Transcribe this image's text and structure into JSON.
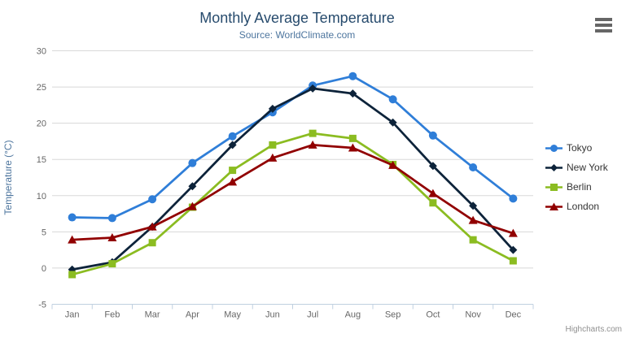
{
  "header": {
    "title": "Monthly Average Temperature",
    "subtitle": "Source: WorldClimate.com"
  },
  "menu": {
    "icon": "hamburger-menu-icon"
  },
  "credits": {
    "label": "Highcharts.com"
  },
  "colors": {
    "title_text": "#274b6d",
    "subtitle_text": "#4d759e",
    "axis_label_text": "#666666",
    "axis_title_text": "#4d759e",
    "legend_text": "#333333",
    "gridline": "#d8d8d8",
    "axis_line": "#c0d0e0",
    "credits_text": "#909090",
    "menu_icon": "#666666",
    "background": "#ffffff"
  },
  "chart_data": {
    "type": "line",
    "title": "Monthly Average Temperature",
    "subtitle": "Source: WorldClimate.com",
    "categories": [
      "Jan",
      "Feb",
      "Mar",
      "Apr",
      "May",
      "Jun",
      "Jul",
      "Aug",
      "Sep",
      "Oct",
      "Nov",
      "Dec"
    ],
    "series": [
      {
        "name": "Tokyo",
        "color": "#2f7ed8",
        "marker": "circle",
        "values": [
          7.0,
          6.9,
          9.5,
          14.5,
          18.2,
          21.5,
          25.2,
          26.5,
          23.3,
          18.3,
          13.9,
          9.6
        ]
      },
      {
        "name": "New York",
        "color": "#0d233a",
        "marker": "diamond",
        "values": [
          -0.2,
          0.8,
          5.7,
          11.3,
          17.0,
          22.0,
          24.8,
          24.1,
          20.1,
          14.1,
          8.6,
          2.5
        ]
      },
      {
        "name": "Berlin",
        "color": "#8bbc21",
        "marker": "square",
        "values": [
          -0.9,
          0.6,
          3.5,
          8.4,
          13.5,
          17.0,
          18.6,
          17.9,
          14.3,
          9.0,
          3.9,
          1.0
        ]
      },
      {
        "name": "London",
        "color": "#910000",
        "marker": "triangle",
        "values": [
          3.9,
          4.2,
          5.7,
          8.5,
          11.9,
          15.2,
          17.0,
          16.6,
          14.2,
          10.3,
          6.6,
          4.8
        ]
      }
    ],
    "xlabel": "",
    "ylabel": "Temperature (°C)",
    "ylim": [
      -5,
      30
    ],
    "ytick_step": 5,
    "yticks": [
      -5,
      0,
      5,
      10,
      15,
      20,
      25,
      30
    ],
    "grid": true,
    "legend_position": "right"
  }
}
